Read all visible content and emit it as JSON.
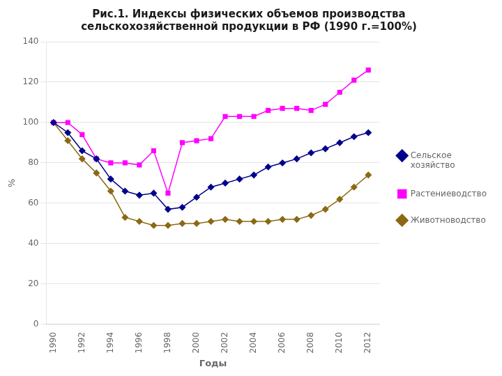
{
  "chart_data": {
    "type": "line",
    "title": "Рис.1. Индексы физических объемов производства\nсельскохозяйственной продукции в РФ (1990 г.=100%)",
    "x_label": "Годы",
    "y_label": "%",
    "x": [
      1990,
      1991,
      1992,
      1993,
      1994,
      1995,
      1996,
      1997,
      1998,
      1999,
      2000,
      2001,
      2002,
      2003,
      2004,
      2005,
      2006,
      2007,
      2008,
      2009,
      2010,
      2011,
      2012
    ],
    "series": [
      {
        "name": "Сельское\nхозяйство",
        "color": "#00008B",
        "marker": "diamond",
        "values": [
          100,
          95,
          86,
          82,
          72,
          66,
          64,
          65,
          57,
          58,
          63,
          68,
          70,
          72,
          74,
          78,
          80,
          82,
          85,
          87,
          90,
          93,
          95
        ]
      },
      {
        "name": "Растениеводство",
        "color": "#FF00FF",
        "marker": "square",
        "values": [
          100,
          100,
          94,
          82,
          80,
          80,
          79,
          86,
          65,
          90,
          91,
          92,
          103,
          103,
          103,
          106,
          107,
          107,
          106,
          109,
          115,
          121,
          126
        ]
      },
      {
        "name": "Животноводство",
        "color": "#8B6914",
        "marker": "diamond",
        "values": [
          100,
          91,
          82,
          75,
          66,
          53,
          51,
          49,
          49,
          50,
          50,
          51,
          52,
          51,
          51,
          51,
          52,
          52,
          54,
          57,
          62,
          68,
          74
        ]
      }
    ],
    "xlim": [
      1989.5,
      2012.8
    ],
    "xticks": [
      1990,
      1992,
      1994,
      1996,
      1998,
      2000,
      2002,
      2004,
      2006,
      2008,
      2010,
      2012
    ],
    "ylim": [
      0,
      140
    ],
    "yticks": [
      0,
      20,
      40,
      60,
      80,
      100,
      120,
      140
    ],
    "grid": "y",
    "legend": "right"
  }
}
